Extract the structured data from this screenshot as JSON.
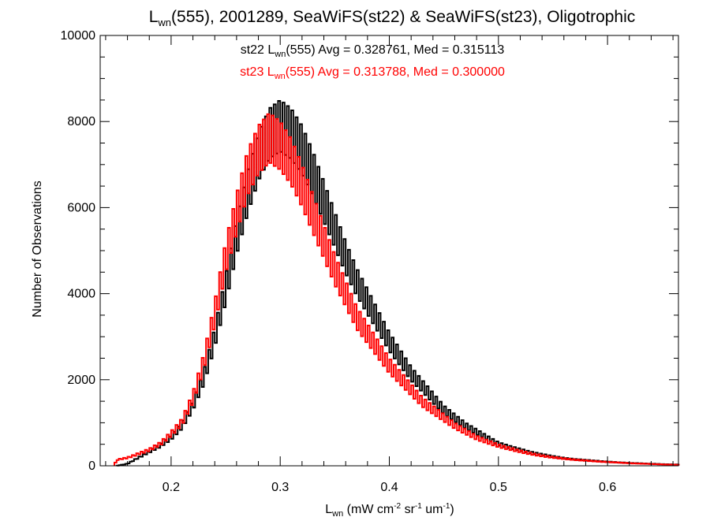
{
  "chart_data": {
    "type": "line",
    "title": {
      "main_prefix": "L",
      "main_sub": "wn",
      "main_rest": "(555), 2001289, SeaWiFS(st22) & SeaWiFS(st23), Oligotrophic"
    },
    "xlabel": {
      "prefix": "L",
      "sub": "wn",
      "units_a": " (mW cm",
      "sup_a": "-2",
      "units_b": " sr",
      "sup_b": "-1",
      "units_c": " um",
      "sup_c": "-1",
      "units_d": ")"
    },
    "ylabel": "Number of Observations",
    "xlim": [
      0.135,
      0.665
    ],
    "ylim": [
      0,
      10000
    ],
    "x_ticks": [
      0.2,
      0.3,
      0.4,
      0.5,
      0.6
    ],
    "x_tick_labels": [
      "0.2",
      "0.3",
      "0.4",
      "0.5",
      "0.6"
    ],
    "y_ticks": [
      0,
      2000,
      4000,
      6000,
      8000,
      10000
    ],
    "y_tick_labels": [
      "0",
      "2000",
      "4000",
      "6000",
      "8000",
      "10000"
    ],
    "annotations": [
      {
        "color": "#000000",
        "pre": "st22 L",
        "sub": "wn",
        "post": "(555) Avg = 0.328761, Med = 0.315113"
      },
      {
        "color": "#ff0000",
        "pre": "st23 L",
        "sub": "wn",
        "post": "(555) Avg = 0.313788, Med = 0.300000"
      }
    ],
    "series": [
      {
        "color": "#000000",
        "x": [
          0.15,
          0.16,
          0.17,
          0.18,
          0.19,
          0.2,
          0.21,
          0.22,
          0.23,
          0.24,
          0.25,
          0.26,
          0.27,
          0.28,
          0.29,
          0.3,
          0.31,
          0.32,
          0.33,
          0.34,
          0.35,
          0.36,
          0.37,
          0.38,
          0.39,
          0.4,
          0.41,
          0.42,
          0.43,
          0.44,
          0.45,
          0.46,
          0.47,
          0.48,
          0.49,
          0.5,
          0.51,
          0.52,
          0.53,
          0.54,
          0.55,
          0.56,
          0.57,
          0.58,
          0.59,
          0.6,
          0.61,
          0.62,
          0.63,
          0.64,
          0.65,
          0.665
        ],
        "y": [
          0,
          50,
          200,
          350,
          500,
          700,
          1000,
          1500,
          2200,
          3200,
          4400,
          5700,
          6800,
          7700,
          8300,
          8500,
          8300,
          7900,
          7300,
          6600,
          5900,
          5200,
          4600,
          4100,
          3600,
          3100,
          2700,
          2300,
          2000,
          1700,
          1400,
          1200,
          1000,
          850,
          700,
          550,
          470,
          400,
          330,
          280,
          230,
          190,
          160,
          140,
          120,
          100,
          85,
          70,
          60,
          50,
          40,
          30
        ]
      },
      {
        "color": "#ff0000",
        "x": [
          0.148,
          0.15,
          0.16,
          0.17,
          0.18,
          0.19,
          0.2,
          0.21,
          0.22,
          0.23,
          0.24,
          0.25,
          0.26,
          0.27,
          0.28,
          0.29,
          0.3,
          0.31,
          0.32,
          0.33,
          0.34,
          0.35,
          0.36,
          0.37,
          0.38,
          0.39,
          0.4,
          0.41,
          0.42,
          0.43,
          0.44,
          0.45,
          0.46,
          0.47,
          0.48,
          0.49,
          0.5,
          0.51,
          0.52,
          0.53,
          0.54,
          0.55,
          0.56,
          0.57,
          0.58,
          0.59,
          0.6,
          0.61,
          0.62,
          0.63,
          0.64,
          0.65,
          0.665
        ],
        "y": [
          0,
          150,
          200,
          300,
          400,
          550,
          800,
          1100,
          1700,
          2600,
          3800,
          5200,
          6300,
          7300,
          7900,
          8200,
          8000,
          7600,
          7000,
          6300,
          5600,
          4900,
          4300,
          3700,
          3300,
          2900,
          2500,
          2200,
          1900,
          1600,
          1400,
          1200,
          1000,
          850,
          700,
          600,
          500,
          430,
          360,
          300,
          250,
          210,
          180,
          150,
          130,
          110,
          95,
          80,
          65,
          55,
          45,
          35,
          25
        ]
      }
    ]
  }
}
